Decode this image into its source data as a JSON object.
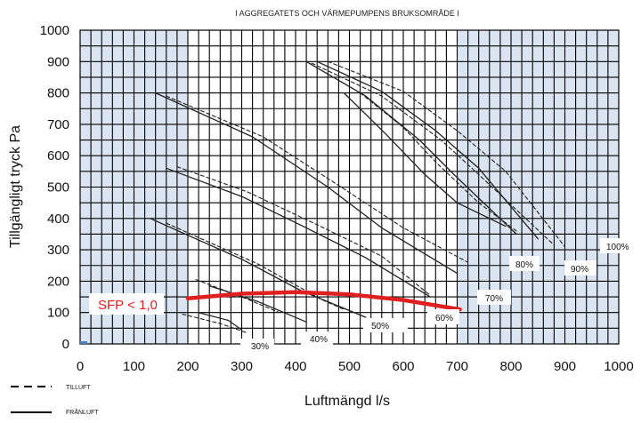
{
  "chart_data": {
    "type": "line",
    "title": "I AGGREGATETS OCH VÄRMEPUMPENS BRUKSOMRÅDE I",
    "xlabel": "Luftmängd l/s",
    "ylabel": "Tillgängligt tryck Pa",
    "xlim": [
      0,
      1000
    ],
    "ylim": [
      0,
      1000
    ],
    "x_ticks": [
      "0",
      "100",
      "200",
      "300",
      "400",
      "500",
      "600",
      "700",
      "800",
      "900",
      "1000"
    ],
    "y_ticks": [
      "0",
      "100",
      "200",
      "300",
      "400",
      "500",
      "600",
      "700",
      "800",
      "900",
      "1000"
    ],
    "grid": true,
    "shaded_ranges_x": [
      [
        0,
        200
      ],
      [
        700,
        1000
      ]
    ],
    "legend": [
      {
        "label": "TILLUFT",
        "style": "dashed"
      },
      {
        "label": "FRÅNLUFT",
        "style": "solid"
      }
    ],
    "series": [
      {
        "name": "30%",
        "style": "solid",
        "points": [
          [
            220,
            100
          ],
          [
            275,
            75
          ],
          [
            300,
            45
          ]
        ]
      },
      {
        "name": "30%",
        "style": "dashed",
        "points": [
          [
            190,
            95
          ],
          [
            260,
            65
          ],
          [
            310,
            35
          ]
        ]
      },
      {
        "name": "40%",
        "style": "solid",
        "points": [
          [
            240,
            185
          ],
          [
            330,
            135
          ],
          [
            420,
            70
          ]
        ]
      },
      {
        "name": "40%",
        "style": "dashed",
        "points": [
          [
            215,
            205
          ],
          [
            300,
            150
          ],
          [
            370,
            100
          ]
        ]
      },
      {
        "name": "50%",
        "style": "solid",
        "points": [
          [
            130,
            400
          ],
          [
            300,
            270
          ],
          [
            410,
            170
          ],
          [
            530,
            85
          ]
        ]
      },
      {
        "name": "50%",
        "style": "dashed",
        "points": [
          [
            160,
            385
          ],
          [
            330,
            255
          ],
          [
            450,
            140
          ],
          [
            490,
            110
          ]
        ]
      },
      {
        "name": "60%",
        "style": "solid",
        "points": [
          [
            160,
            560
          ],
          [
            300,
            470
          ],
          [
            420,
            370
          ],
          [
            530,
            275
          ],
          [
            650,
            150
          ]
        ]
      },
      {
        "name": "60%",
        "style": "dashed",
        "points": [
          [
            180,
            565
          ],
          [
            310,
            485
          ],
          [
            440,
            380
          ],
          [
            560,
            280
          ],
          [
            650,
            155
          ]
        ]
      },
      {
        "name": "70%",
        "style": "solid",
        "points": [
          [
            140,
            800
          ],
          [
            320,
            660
          ],
          [
            460,
            500
          ],
          [
            560,
            370
          ],
          [
            700,
            225
          ]
        ]
      },
      {
        "name": "70%",
        "style": "dashed",
        "points": [
          [
            160,
            790
          ],
          [
            340,
            660
          ],
          [
            480,
            505
          ],
          [
            600,
            370
          ],
          [
            720,
            260
          ]
        ]
      },
      {
        "name": "80%",
        "style": "solid",
        "points": [
          [
            490,
            800
          ],
          [
            570,
            665
          ],
          [
            640,
            540
          ],
          [
            700,
            450
          ],
          [
            790,
            375
          ]
        ]
      },
      {
        "name": "80%",
        "style": "dashed",
        "points": [
          [
            520,
            800
          ],
          [
            600,
            690
          ],
          [
            660,
            580
          ],
          [
            740,
            450
          ],
          [
            810,
            360
          ]
        ]
      },
      {
        "name": "90%",
        "style": "solid",
        "points": [
          [
            420,
            900
          ],
          [
            530,
            790
          ],
          [
            630,
            650
          ],
          [
            700,
            530
          ],
          [
            810,
            350
          ]
        ]
      },
      {
        "name": "90%",
        "style": "dashed",
        "points": [
          [
            430,
            895
          ],
          [
            560,
            790
          ],
          [
            670,
            650
          ],
          [
            740,
            540
          ],
          [
            880,
            315
          ]
        ]
      },
      {
        "name": "100%",
        "style": "solid",
        "points": [
          [
            440,
            900
          ],
          [
            560,
            805
          ],
          [
            660,
            680
          ],
          [
            740,
            560
          ],
          [
            850,
            335
          ]
        ]
      },
      {
        "name": "100%",
        "style": "dashed",
        "points": [
          [
            460,
            900
          ],
          [
            600,
            805
          ],
          [
            700,
            680
          ],
          [
            790,
            550
          ],
          [
            900,
            310
          ]
        ]
      },
      {
        "name": "SFP < 1,0",
        "style": "red",
        "points": [
          [
            200,
            145
          ],
          [
            300,
            160
          ],
          [
            400,
            165
          ],
          [
            500,
            158
          ],
          [
            600,
            140
          ],
          [
            705,
            110
          ]
        ]
      }
    ],
    "labels": [
      "30%",
      "40%",
      "50%",
      "60%",
      "70%",
      "80%",
      "90%",
      "100%",
      "SFP < 1,0"
    ],
    "colors": {
      "shade": "#dbe5f1",
      "grid": "#000000",
      "curve": "#222222",
      "sfp": "#e02020"
    }
  }
}
